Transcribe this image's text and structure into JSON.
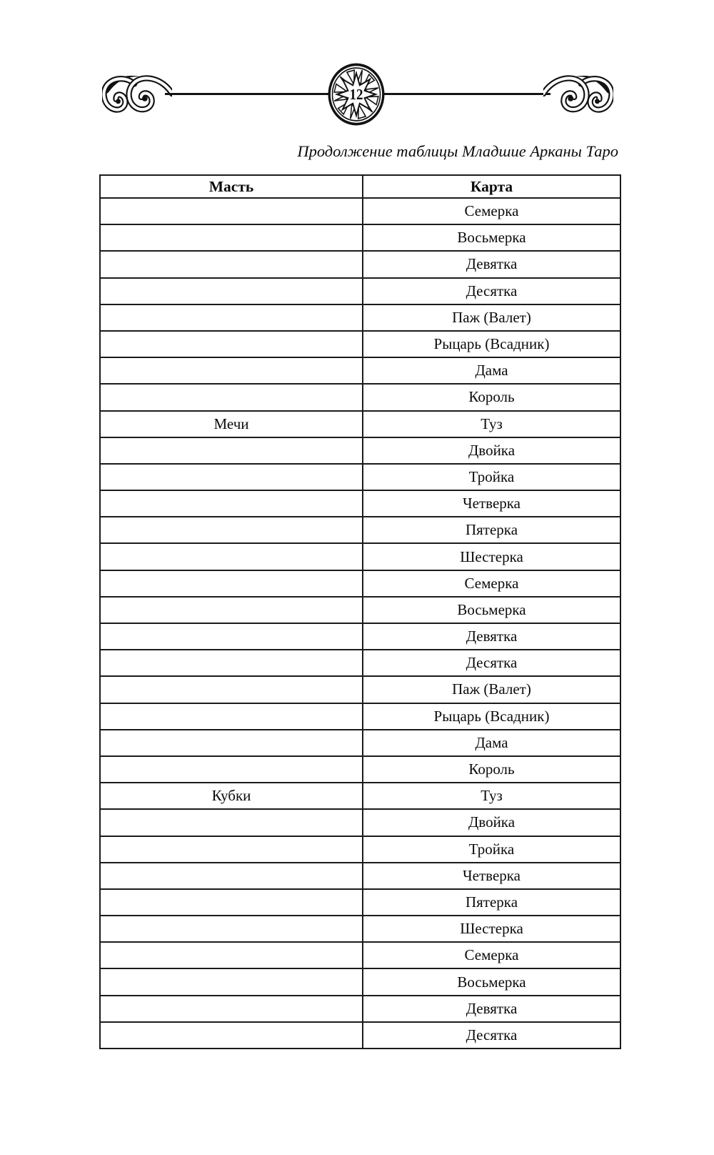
{
  "page": {
    "number": "12",
    "title": "Продолжение таблицы Младшие Арканы Таро"
  },
  "icons": {
    "left_ornament": "scroll-flourish-left",
    "right_ornament": "scroll-flourish-right",
    "medallion": "sunburst-page-number-medallion"
  },
  "table": {
    "columns": [
      {
        "label": "Масть"
      },
      {
        "label": "Карта"
      }
    ],
    "rows": [
      {
        "suit": "",
        "card": "Семерка"
      },
      {
        "suit": "",
        "card": "Восьмерка"
      },
      {
        "suit": "",
        "card": "Девятка"
      },
      {
        "suit": "",
        "card": "Десятка"
      },
      {
        "suit": "",
        "card": "Паж (Валет)"
      },
      {
        "suit": "",
        "card": "Рыцарь (Всадник)"
      },
      {
        "suit": "",
        "card": "Дама"
      },
      {
        "suit": "",
        "card": "Король"
      },
      {
        "suit": "Мечи",
        "card": "Туз"
      },
      {
        "suit": "",
        "card": "Двойка"
      },
      {
        "suit": "",
        "card": "Тройка"
      },
      {
        "suit": "",
        "card": "Четверка"
      },
      {
        "suit": "",
        "card": "Пятерка"
      },
      {
        "suit": "",
        "card": "Шестерка"
      },
      {
        "suit": "",
        "card": "Семерка"
      },
      {
        "suit": "",
        "card": "Восьмерка"
      },
      {
        "suit": "",
        "card": "Девятка"
      },
      {
        "suit": "",
        "card": "Десятка"
      },
      {
        "suit": "",
        "card": "Паж (Валет)"
      },
      {
        "suit": "",
        "card": "Рыцарь (Всадник)"
      },
      {
        "suit": "",
        "card": "Дама"
      },
      {
        "suit": "",
        "card": "Король"
      },
      {
        "suit": "Кубки",
        "card": "Туз"
      },
      {
        "suit": "",
        "card": "Двойка"
      },
      {
        "suit": "",
        "card": "Тройка"
      },
      {
        "suit": "",
        "card": "Четверка"
      },
      {
        "suit": "",
        "card": "Пятерка"
      },
      {
        "suit": "",
        "card": "Шестерка"
      },
      {
        "suit": "",
        "card": "Семерка"
      },
      {
        "suit": "",
        "card": "Восьмерка"
      },
      {
        "suit": "",
        "card": "Девятка"
      },
      {
        "suit": "",
        "card": "Десятка"
      }
    ]
  }
}
